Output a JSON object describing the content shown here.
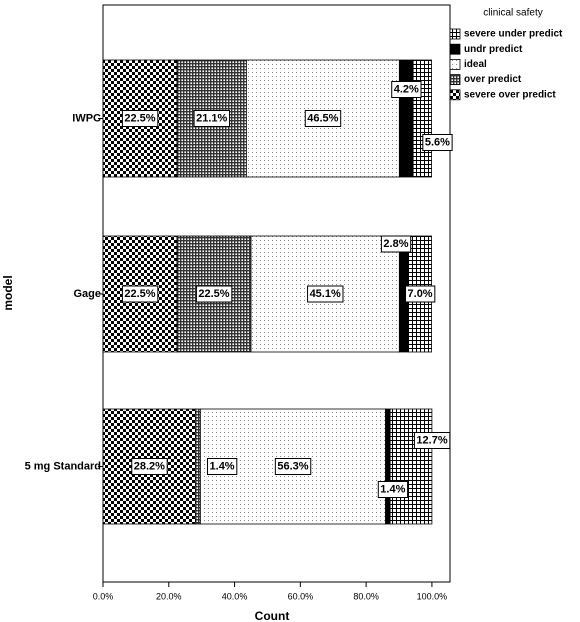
{
  "chart_data": {
    "type": "stacked-barh",
    "x_label": "Count",
    "y_label": "model",
    "legend_title": "clinical safety",
    "categories": [
      "IWPC",
      "Gage",
      "5 mg Standard"
    ],
    "series": [
      {
        "name": "severe over predict",
        "pattern": "checker",
        "color": "#000000",
        "values": [
          22.5,
          22.5,
          28.2
        ],
        "value_labels": [
          "22.5%",
          "22.5%",
          "28.2%"
        ]
      },
      {
        "name": "over predict",
        "pattern": "dense-grid",
        "color": "#000000",
        "values": [
          21.1,
          22.5,
          1.4
        ],
        "value_labels": [
          "21.1%",
          "22.5%",
          "1.4%"
        ]
      },
      {
        "name": "ideal",
        "pattern": "dots",
        "color": "#000000",
        "values": [
          46.5,
          45.1,
          56.3
        ],
        "value_labels": [
          "46.5%",
          "45.1%",
          "56.3%"
        ]
      },
      {
        "name": "undr predict",
        "pattern": "solid",
        "color": "#000000",
        "values": [
          4.2,
          2.8,
          1.4
        ],
        "value_labels": [
          "4.2%",
          "2.8%",
          "1.4%"
        ]
      },
      {
        "name": "severe under predict",
        "pattern": "grid",
        "color": "#000000",
        "values": [
          5.6,
          7.0,
          12.7
        ],
        "value_labels": [
          "5.6%",
          "7.0%",
          "12.7%"
        ]
      }
    ],
    "xlim": [
      0,
      105.5
    ],
    "xticks": [
      {
        "value": 0,
        "label": "0.0%"
      },
      {
        "value": 20,
        "label": "20.0%"
      },
      {
        "value": 40,
        "label": "40.0%"
      },
      {
        "value": 60,
        "label": "60.0%"
      },
      {
        "value": 80,
        "label": "80.0%"
      },
      {
        "value": 100,
        "label": "100.0%"
      }
    ],
    "legend": "top-right",
    "grid": false
  }
}
